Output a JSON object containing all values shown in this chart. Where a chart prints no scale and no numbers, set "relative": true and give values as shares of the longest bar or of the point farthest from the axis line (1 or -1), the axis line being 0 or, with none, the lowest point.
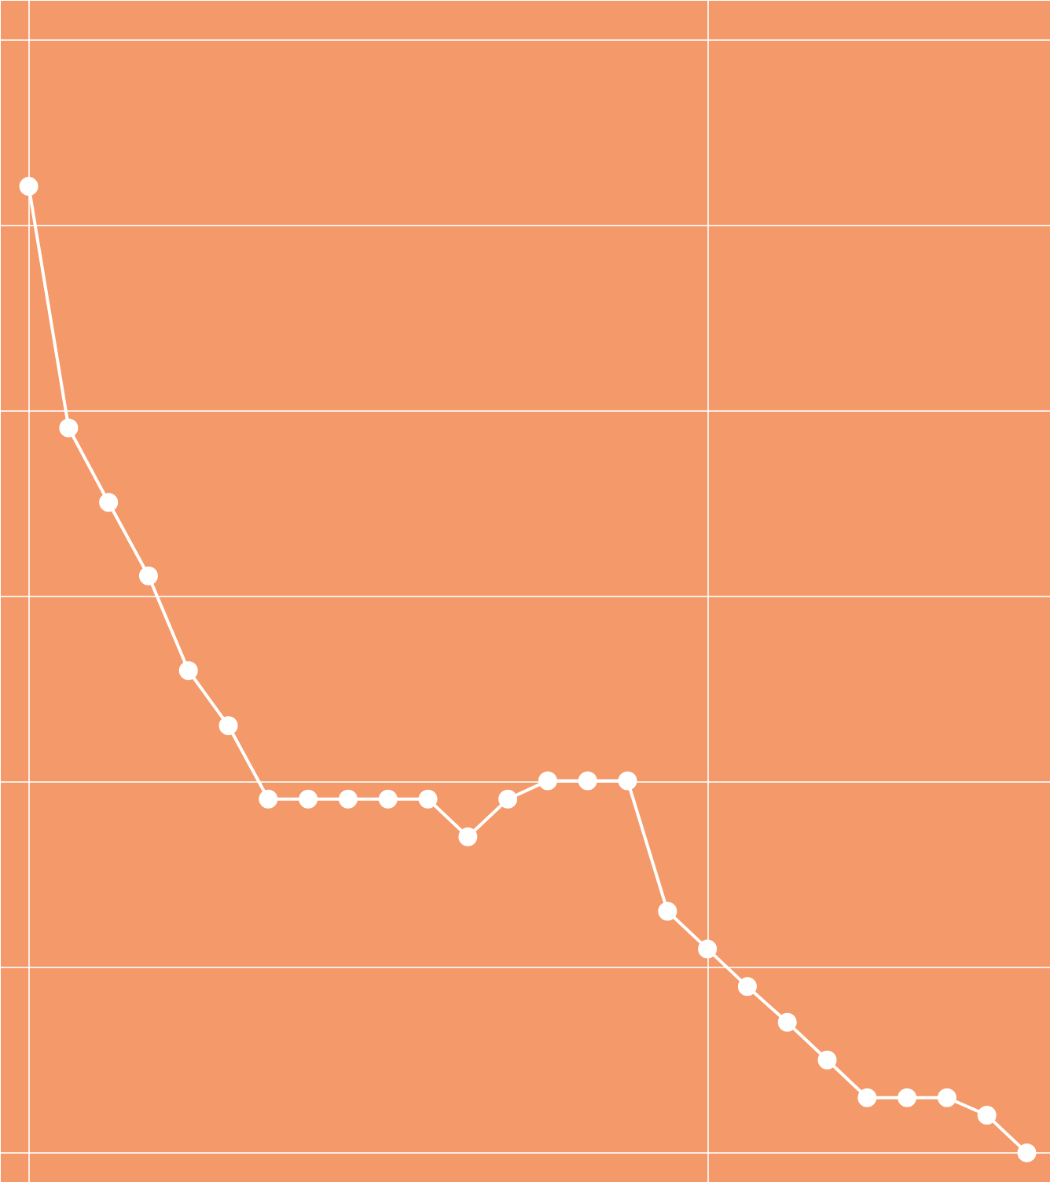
{
  "chart_data": {
    "type": "line",
    "relative": true,
    "categories": [
      null,
      null,
      null,
      null,
      null,
      null,
      null,
      null,
      null,
      null,
      null,
      null,
      null,
      null,
      null,
      null,
      null,
      null,
      null,
      null,
      null,
      null,
      null,
      null,
      null,
      null
    ],
    "series": [
      {
        "color": "#ffffff",
        "values": [
          1.0,
          0.75,
          0.673,
          0.597,
          0.499,
          0.442,
          0.366,
          0.366,
          0.366,
          0.366,
          0.366,
          0.327,
          0.366,
          0.385,
          0.385,
          0.385,
          0.25,
          0.211,
          0.172,
          0.135,
          0.096,
          0.057,
          0.057,
          0.057,
          0.039,
          0.0
        ]
      }
    ],
    "marker": "circle",
    "line_style": "solid",
    "grid": true
  }
}
